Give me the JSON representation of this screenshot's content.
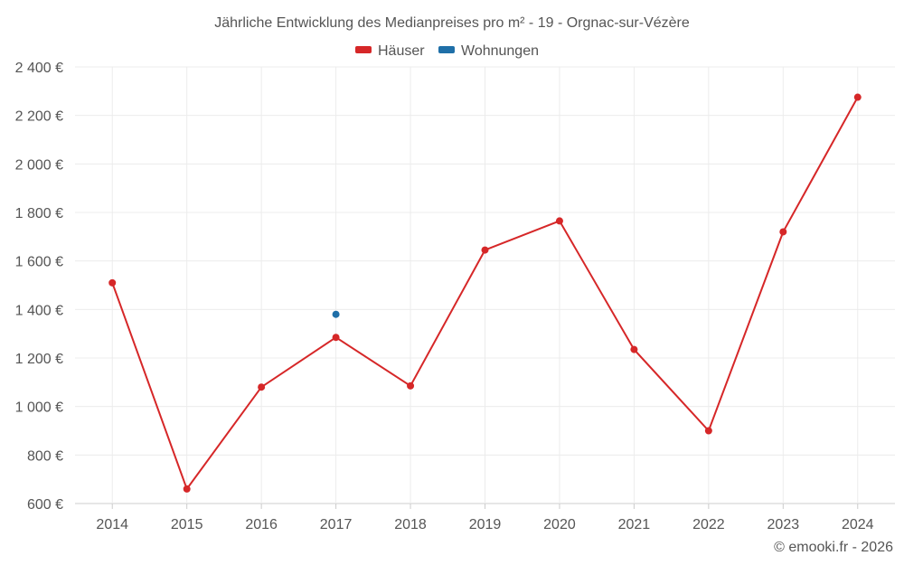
{
  "chart_data": {
    "type": "line",
    "title": "Jährliche Entwicklung des Medianpreises pro m² - 19 - Orgnac-sur-Vézère",
    "categories": [
      "2014",
      "2015",
      "2016",
      "2017",
      "2018",
      "2019",
      "2020",
      "2021",
      "2022",
      "2023",
      "2024"
    ],
    "series": [
      {
        "name": "Häuser",
        "color": "#d62728",
        "values": [
          1510,
          660,
          1080,
          1285,
          1085,
          1645,
          1765,
          1235,
          900,
          1720,
          2275
        ]
      },
      {
        "name": "Wohnungen",
        "color": "#1f6fa8",
        "values": [
          null,
          null,
          null,
          1380,
          null,
          null,
          null,
          null,
          null,
          null,
          null
        ]
      }
    ],
    "yticks": [
      "600 €",
      "800 €",
      "1 000 €",
      "1 200 €",
      "1 400 €",
      "1 600 €",
      "1 800 €",
      "2 000 €",
      "2 200 €",
      "2 400 €"
    ],
    "ylim": [
      600,
      2400
    ],
    "grid": true,
    "legend_position": "top-center"
  },
  "credit": "© emooki.fr - 2026"
}
